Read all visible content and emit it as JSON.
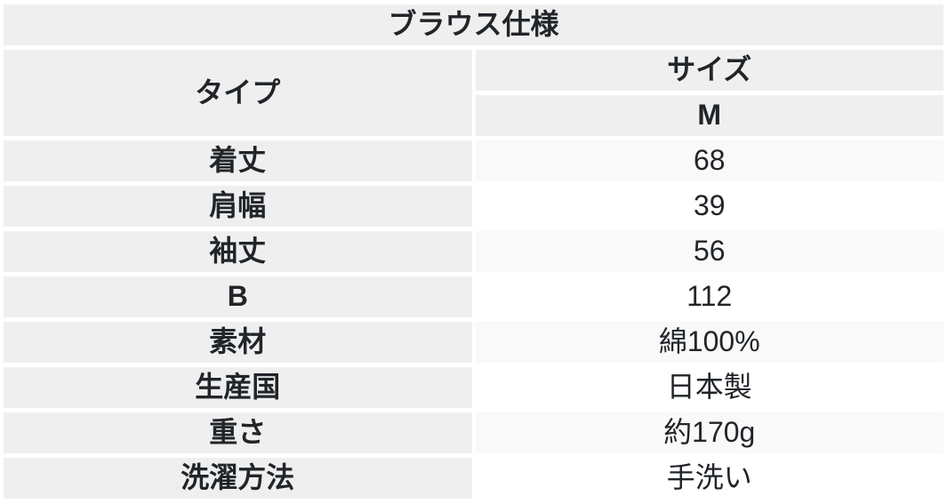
{
  "chart_data": {
    "type": "table",
    "title": "ブラウス仕様",
    "header": {
      "row_label": "タイプ",
      "col_label": "サイズ",
      "col_value": "M"
    },
    "rows": [
      {
        "label": "着丈",
        "value": "68"
      },
      {
        "label": "肩幅",
        "value": "39"
      },
      {
        "label": "袖丈",
        "value": "56"
      },
      {
        "label": "B",
        "value": "112"
      },
      {
        "label": "素材",
        "value": "綿100%"
      },
      {
        "label": "生産国",
        "value": "日本製"
      },
      {
        "label": "重さ",
        "value": "約170g"
      },
      {
        "label": "洗濯方法",
        "value": "手洗い"
      }
    ],
    "layout": {
      "striped": true,
      "legend": "none",
      "label_column_bg": "#efefef",
      "stripe_bg": "#f9f9f9",
      "row_bg": "#ffffff",
      "text_color": "#212529"
    }
  }
}
